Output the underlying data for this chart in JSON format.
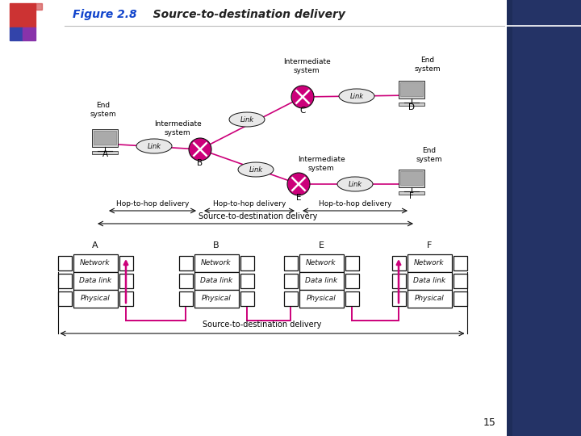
{
  "title1": "Figure 2.8",
  "title2": "   Source-to-destination delivery",
  "bg_color": "#FFFFFF",
  "magenta": "#CC007A",
  "dark": "#111111",
  "page_num": "15",
  "right_bg": "#2a3a6a",
  "logo_red": "#cc3333",
  "logo_blue": "#3344aa",
  "logo_purple": "#8833aa"
}
